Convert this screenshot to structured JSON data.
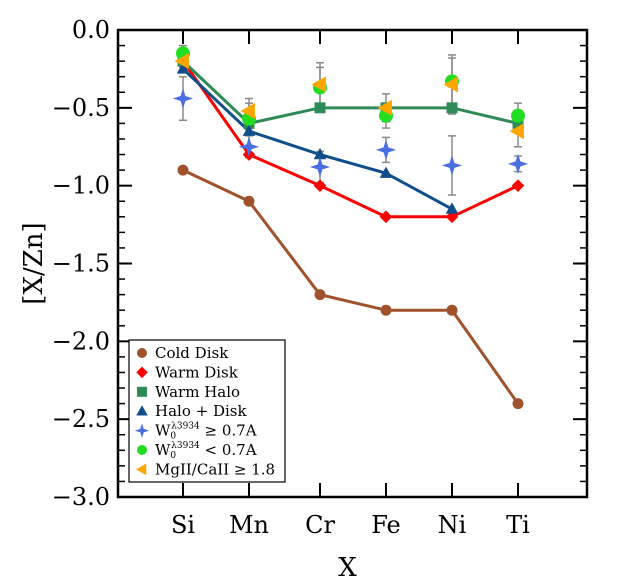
{
  "chart_data": {
    "type": "line",
    "title": "",
    "xlabel": "X",
    "ylabel": "[X/Zn]",
    "categories": [
      "Si",
      "Mn",
      "Cr",
      "Fe",
      "Ni",
      "Ti"
    ],
    "ylim": [
      -3.0,
      0.0
    ],
    "yticks": [
      "0.0",
      "−0.5",
      "−1.0",
      "−1.5",
      "−2.0",
      "−2.5",
      "−3.0"
    ],
    "ytick_values": [
      0.0,
      -0.5,
      -1.0,
      -1.5,
      -2.0,
      -2.5,
      -3.0
    ],
    "legend_position": "lower-left",
    "series": [
      {
        "name": "Cold Disk",
        "marker": "circle",
        "color": "#A0522D",
        "line": true,
        "x": [
          "Si",
          "Mn",
          "Cr",
          "Fe",
          "Ni",
          "Ti"
        ],
        "values": [
          -0.9,
          -1.1,
          -1.7,
          -1.8,
          -1.8,
          -2.4
        ]
      },
      {
        "name": "Warm Disk",
        "marker": "diamond",
        "color": "#FF0000",
        "line": true,
        "x": [
          "Si",
          "Mn",
          "Cr",
          "Fe",
          "Ni",
          "Ti"
        ],
        "values": [
          -0.2,
          -0.8,
          -1.0,
          -1.2,
          -1.2,
          -1.0
        ]
      },
      {
        "name": "Warm Halo",
        "marker": "square",
        "color": "#2E8B57",
        "line": true,
        "x": [
          "Si",
          "Mn",
          "Cr",
          "Fe",
          "Ni",
          "Ti"
        ],
        "values": [
          -0.2,
          -0.6,
          -0.5,
          -0.5,
          -0.5,
          -0.6
        ]
      },
      {
        "name": "Halo + Disk",
        "marker": "triangle",
        "color": "#104E8B",
        "line": true,
        "x": [
          "Si",
          "Mn",
          "Cr",
          "Fe",
          "Ni"
        ],
        "values": [
          -0.25,
          -0.65,
          -0.8,
          -0.92,
          -1.15
        ]
      },
      {
        "name": "W",
        "name_sub": "0",
        "name_sup": "λ3934",
        "name_rest": " ≥ 0.7A",
        "marker": "star4",
        "color": "#4A6FE3",
        "line": false,
        "x": [
          "Si",
          "Mn",
          "Cr",
          "Fe",
          "Ni",
          "Ti"
        ],
        "values": [
          -0.44,
          -0.75,
          -0.88,
          -0.77,
          -0.87,
          -0.86
        ],
        "errors": [
          0.14,
          0.07,
          0.1,
          0.08,
          0.19,
          0.05
        ]
      },
      {
        "name": "W",
        "name_sub": "0",
        "name_sup": "λ3934",
        "name_rest": " < 0.7A",
        "marker": "circle",
        "color": "#22DD22",
        "line": false,
        "x": [
          "Si",
          "Mn",
          "Cr",
          "Fe",
          "Ni",
          "Ti"
        ],
        "values": [
          -0.15,
          -0.57,
          -0.37,
          -0.55,
          -0.33,
          -0.55
        ],
        "errors": [
          0.05,
          0.1,
          0.13,
          0.08,
          0.15,
          0.08
        ]
      },
      {
        "name": "MgII/CaII ≥ 1.8",
        "marker": "triangle-left",
        "color": "#FFA500",
        "line": false,
        "x": [
          "Si",
          "Mn",
          "Cr",
          "Fe",
          "Ni",
          "Ti"
        ],
        "values": [
          -0.2,
          -0.52,
          -0.35,
          -0.5,
          -0.35,
          -0.65
        ],
        "errors": [
          0.04,
          0.08,
          0.14,
          0.09,
          0.19,
          0.1
        ]
      }
    ]
  }
}
